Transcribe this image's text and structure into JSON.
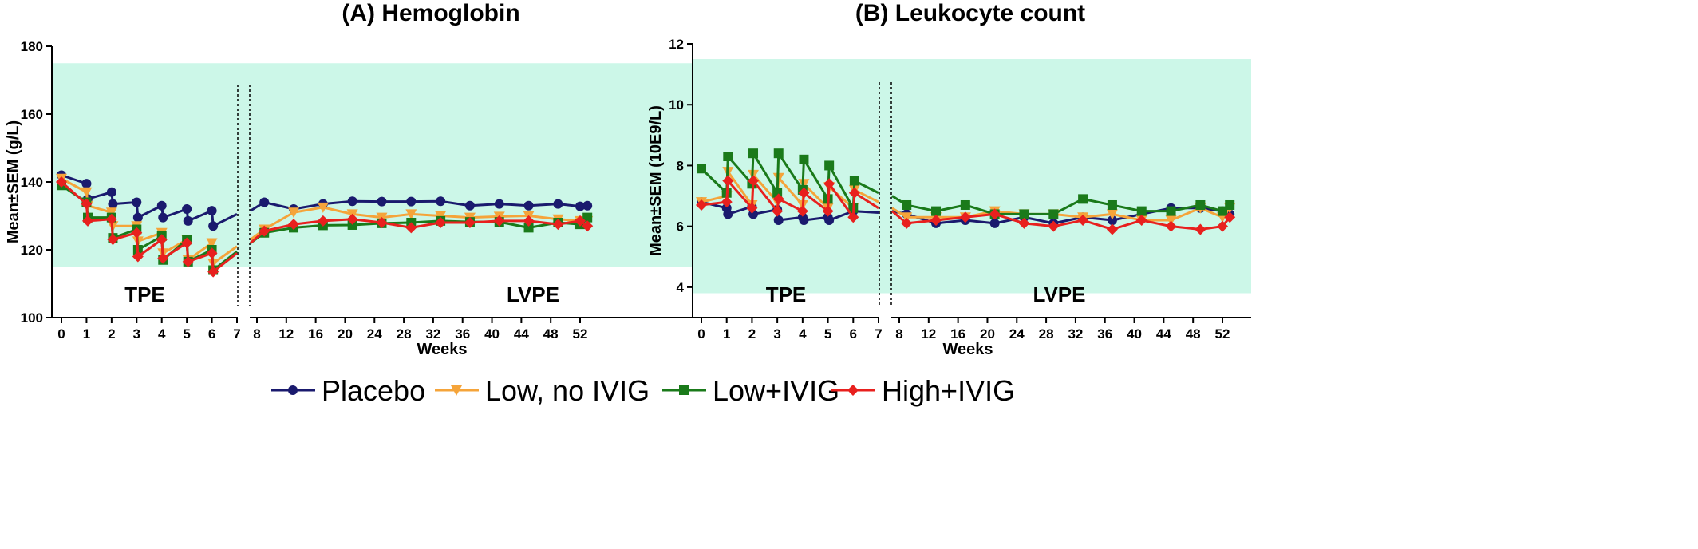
{
  "legend": [
    {
      "name": "Placebo",
      "color": "#1a1a6e",
      "marker": "circle"
    },
    {
      "name": "Low, no IVIG",
      "color": "#f5a43a",
      "marker": "triangle-down"
    },
    {
      "name": "Low+IVIG",
      "color": "#1a7a1a",
      "marker": "square"
    },
    {
      "name": "High+IVIG",
      "color": "#e8201e",
      "marker": "diamond"
    }
  ],
  "band_color": "#ccf7e8",
  "chart_data": [
    {
      "type": "line",
      "title": "(A) Hemoglobin",
      "xlabel": "Weeks",
      "ylabel": "Mean±SEM (g/L)",
      "ylim": [
        100,
        180
      ],
      "yticks": [
        100,
        120,
        140,
        160,
        180
      ],
      "reference_range": [
        115,
        175
      ],
      "phases": [
        "TPE",
        "LVPE"
      ],
      "x_tpe_ticks": [
        0,
        1,
        2,
        3,
        4,
        5,
        6,
        7
      ],
      "x_lvpe_ticks": [
        8,
        12,
        16,
        20,
        24,
        28,
        32,
        36,
        40,
        44,
        48,
        52
      ],
      "series": [
        {
          "name": "Placebo",
          "color": "#1a1a6e",
          "marker": "circle",
          "tpe": [
            [
              0,
              142
            ],
            [
              1,
              139.5
            ],
            [
              1.05,
              135
            ],
            [
              2,
              137
            ],
            [
              2.05,
              133.5
            ],
            [
              3,
              134
            ],
            [
              3.05,
              129.5
            ],
            [
              4,
              133
            ],
            [
              4.05,
              129.5
            ],
            [
              5,
              132
            ],
            [
              5.05,
              128.5
            ],
            [
              6,
              131.5
            ],
            [
              6.05,
              127
            ],
            [
              7,
              130.5
            ]
          ],
          "lvpe": [
            [
              7,
              131.5
            ],
            [
              9,
              134
            ],
            [
              13,
              132
            ],
            [
              17,
              133.5
            ],
            [
              21,
              134.3
            ],
            [
              25,
              134.2
            ],
            [
              29,
              134.2
            ],
            [
              33,
              134.3
            ],
            [
              37,
              133
            ],
            [
              41,
              133.5
            ],
            [
              45,
              133
            ],
            [
              49,
              133.5
            ],
            [
              52,
              132.8
            ],
            [
              53,
              133
            ]
          ]
        },
        {
          "name": "Low, no IVIG",
          "color": "#f5a43a",
          "marker": "triangle-down",
          "tpe": [
            [
              0,
              141
            ],
            [
              1,
              137
            ],
            [
              1.05,
              133
            ],
            [
              2,
              131
            ],
            [
              2.05,
              127
            ],
            [
              3,
              127
            ],
            [
              3.05,
              122.5
            ],
            [
              4,
              125
            ],
            [
              4.05,
              119
            ],
            [
              5,
              123
            ],
            [
              5.05,
              117
            ],
            [
              6,
              122
            ],
            [
              6.05,
              116
            ],
            [
              7,
              121
            ]
          ],
          "lvpe": [
            [
              7,
              123
            ],
            [
              9,
              126
            ],
            [
              13,
              131
            ],
            [
              17,
              132.5
            ],
            [
              21,
              130.5
            ],
            [
              25,
              129.5
            ],
            [
              29,
              130.5
            ],
            [
              33,
              130
            ],
            [
              37,
              129.5
            ],
            [
              41,
              129.8
            ],
            [
              45,
              130
            ],
            [
              49,
              129
            ],
            [
              52,
              128.5
            ],
            [
              53,
              128.5
            ]
          ]
        },
        {
          "name": "Low+IVIG",
          "color": "#1a7a1a",
          "marker": "square",
          "tpe": [
            [
              0,
              139
            ],
            [
              1,
              134
            ],
            [
              1.05,
              129.5
            ],
            [
              2,
              129.5
            ],
            [
              2.05,
              123.5
            ],
            [
              3,
              126
            ],
            [
              3.05,
              120
            ],
            [
              4,
              124
            ],
            [
              4.05,
              117
            ],
            [
              5,
              123
            ],
            [
              5.05,
              116.5
            ],
            [
              6,
              120
            ],
            [
              6.05,
              114
            ],
            [
              7,
              119.5
            ]
          ],
          "lvpe": [
            [
              7,
              122
            ],
            [
              9,
              125
            ],
            [
              13,
              126.5
            ],
            [
              17,
              127.2
            ],
            [
              21,
              127.3
            ],
            [
              25,
              127.8
            ],
            [
              29,
              128
            ],
            [
              33,
              128.5
            ],
            [
              37,
              128.2
            ],
            [
              41,
              128.2
            ],
            [
              45,
              126.5
            ],
            [
              49,
              128
            ],
            [
              52,
              127.5
            ],
            [
              53,
              129.5
            ]
          ]
        },
        {
          "name": "High+IVIG",
          "color": "#e8201e",
          "marker": "diamond",
          "tpe": [
            [
              0,
              140
            ],
            [
              1,
              133.5
            ],
            [
              1.05,
              128.5
            ],
            [
              2,
              129
            ],
            [
              2.05,
              123
            ],
            [
              3,
              125
            ],
            [
              3.05,
              118
            ],
            [
              4,
              123
            ],
            [
              4.05,
              117.5
            ],
            [
              5,
              122
            ],
            [
              5.05,
              116.5
            ],
            [
              6,
              119
            ],
            [
              6.05,
              113.5
            ],
            [
              7,
              119
            ]
          ],
          "lvpe": [
            [
              7,
              122
            ],
            [
              9,
              125.5
            ],
            [
              13,
              127.5
            ],
            [
              17,
              128.5
            ],
            [
              21,
              129
            ],
            [
              25,
              128
            ],
            [
              29,
              126.5
            ],
            [
              33,
              128
            ],
            [
              37,
              128
            ],
            [
              41,
              128.5
            ],
            [
              45,
              128.5
            ],
            [
              49,
              127.5
            ],
            [
              52,
              128.5
            ],
            [
              53,
              127
            ]
          ]
        }
      ]
    },
    {
      "type": "line",
      "title": "(B) Leukocyte count",
      "xlabel": "Weeks",
      "ylabel": "Mean±SEM (10E9/L)",
      "ylim": [
        3,
        12
      ],
      "yticks": [
        4,
        6,
        8,
        10,
        12
      ],
      "reference_range": [
        3.8,
        11.5
      ],
      "phases": [
        "TPE",
        "LVPE"
      ],
      "x_tpe_ticks": [
        0,
        1,
        2,
        3,
        4,
        5,
        6,
        7
      ],
      "x_lvpe_ticks": [
        8,
        12,
        16,
        20,
        24,
        28,
        32,
        36,
        40,
        44,
        48,
        52
      ],
      "series": [
        {
          "name": "Placebo",
          "color": "#1a1a6e",
          "marker": "circle",
          "tpe": [
            [
              0,
              6.8
            ],
            [
              1,
              6.6
            ],
            [
              1.05,
              6.4
            ],
            [
              2,
              6.65
            ],
            [
              2.05,
              6.4
            ],
            [
              3,
              6.55
            ],
            [
              3.05,
              6.2
            ],
            [
              4,
              6.3
            ],
            [
              4.05,
              6.2
            ],
            [
              5,
              6.3
            ],
            [
              5.05,
              6.2
            ],
            [
              6,
              6.5
            ],
            [
              7,
              6.45
            ]
          ],
          "lvpe": [
            [
              7,
              6.5
            ],
            [
              9,
              6.4
            ],
            [
              13,
              6.1
            ],
            [
              17,
              6.2
            ],
            [
              21,
              6.1
            ],
            [
              25,
              6.3
            ],
            [
              29,
              6.1
            ],
            [
              33,
              6.3
            ],
            [
              37,
              6.2
            ],
            [
              41,
              6.4
            ],
            [
              45,
              6.6
            ],
            [
              49,
              6.6
            ],
            [
              52,
              6.5
            ],
            [
              53,
              6.4
            ]
          ]
        },
        {
          "name": "Low, no IVIG",
          "color": "#f5a43a",
          "marker": "triangle-down",
          "tpe": [
            [
              0,
              6.8
            ],
            [
              1,
              7.0
            ],
            [
              1.05,
              7.8
            ],
            [
              2,
              6.7
            ],
            [
              2.05,
              7.7
            ],
            [
              3,
              6.8
            ],
            [
              3.05,
              7.6
            ],
            [
              4,
              6.7
            ],
            [
              4.05,
              7.4
            ],
            [
              5,
              6.6
            ],
            [
              5.05,
              7.3
            ],
            [
              6,
              6.6
            ],
            [
              6.05,
              7.2
            ],
            [
              7,
              6.8
            ]
          ],
          "lvpe": [
            [
              7,
              6.6
            ],
            [
              9,
              6.3
            ],
            [
              13,
              6.3
            ],
            [
              17,
              6.3
            ],
            [
              21,
              6.5
            ],
            [
              25,
              6.4
            ],
            [
              29,
              6.4
            ],
            [
              33,
              6.3
            ],
            [
              37,
              6.4
            ],
            [
              41,
              6.2
            ],
            [
              45,
              6.2
            ],
            [
              49,
              6.6
            ],
            [
              52,
              6.3
            ],
            [
              53,
              6.6
            ]
          ]
        },
        {
          "name": "Low+IVIG",
          "color": "#1a7a1a",
          "marker": "square",
          "tpe": [
            [
              0,
              7.9
            ],
            [
              1,
              7.1
            ],
            [
              1.05,
              8.3
            ],
            [
              2,
              7.4
            ],
            [
              2.05,
              8.4
            ],
            [
              3,
              7.1
            ],
            [
              3.05,
              8.4
            ],
            [
              4,
              7.2
            ],
            [
              4.05,
              8.2
            ],
            [
              5,
              6.9
            ],
            [
              5.05,
              8.0
            ],
            [
              6,
              6.6
            ],
            [
              6.05,
              7.5
            ],
            [
              7,
              7.1
            ]
          ],
          "lvpe": [
            [
              7,
              7.0
            ],
            [
              9,
              6.7
            ],
            [
              13,
              6.5
            ],
            [
              17,
              6.7
            ],
            [
              21,
              6.4
            ],
            [
              25,
              6.4
            ],
            [
              29,
              6.4
            ],
            [
              33,
              6.9
            ],
            [
              37,
              6.7
            ],
            [
              41,
              6.5
            ],
            [
              45,
              6.5
            ],
            [
              49,
              6.7
            ],
            [
              52,
              6.5
            ],
            [
              53,
              6.7
            ]
          ]
        },
        {
          "name": "High+IVIG",
          "color": "#e8201e",
          "marker": "diamond",
          "tpe": [
            [
              0,
              6.7
            ],
            [
              1,
              6.8
            ],
            [
              1.05,
              7.5
            ],
            [
              2,
              6.6
            ],
            [
              2.05,
              7.5
            ],
            [
              3,
              6.5
            ],
            [
              3.05,
              6.9
            ],
            [
              4,
              6.5
            ],
            [
              4.05,
              7.1
            ],
            [
              5,
              6.5
            ],
            [
              5.05,
              7.4
            ],
            [
              6,
              6.3
            ],
            [
              6.05,
              7.1
            ],
            [
              7,
              6.6
            ]
          ],
          "lvpe": [
            [
              7,
              6.5
            ],
            [
              9,
              6.1
            ],
            [
              13,
              6.2
            ],
            [
              17,
              6.3
            ],
            [
              21,
              6.4
            ],
            [
              25,
              6.1
            ],
            [
              29,
              6.0
            ],
            [
              33,
              6.2
            ],
            [
              37,
              5.9
            ],
            [
              41,
              6.2
            ],
            [
              45,
              6.0
            ],
            [
              49,
              5.9
            ],
            [
              52,
              6.0
            ],
            [
              53,
              6.3
            ]
          ]
        }
      ]
    }
  ]
}
